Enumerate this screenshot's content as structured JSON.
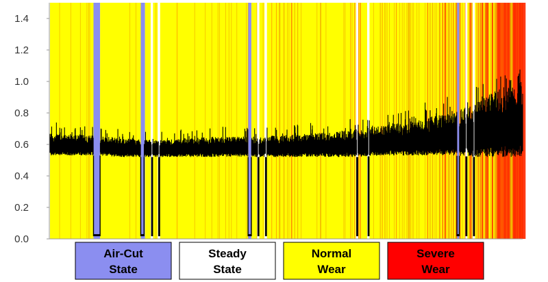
{
  "chart_data": {
    "type": "area",
    "title": "",
    "xlabel": "",
    "ylabel": "",
    "ylim": [
      0.0,
      1.5
    ],
    "yticks": [
      "0.0",
      "0.2",
      "0.4",
      "0.6",
      "0.8",
      "1.0",
      "1.2",
      "1.4"
    ],
    "grid": false,
    "legend_position": "bottom",
    "x_range": [
      0,
      100
    ],
    "legend": [
      {
        "state": "air-cut",
        "lines": [
          "Air-Cut",
          "State"
        ],
        "color": "#8b8ef0",
        "text_color": "#000000"
      },
      {
        "state": "steady",
        "lines": [
          "Steady",
          "State"
        ],
        "color": "#ffffff",
        "text_color": "#000000"
      },
      {
        "state": "normal",
        "lines": [
          "Normal",
          "Wear"
        ],
        "color": "#ffff00",
        "text_color": "#000000"
      },
      {
        "state": "severe",
        "lines": [
          "Severe",
          "Wear"
        ],
        "color": "#ff0000",
        "text_color": "#000000"
      }
    ],
    "background_segments": [
      {
        "state": "normal",
        "start": 0.0,
        "end": 9.2
      },
      {
        "state": "air-cut",
        "start": 9.2,
        "end": 10.6
      },
      {
        "state": "normal",
        "start": 10.6,
        "end": 19.2
      },
      {
        "state": "air-cut",
        "start": 19.2,
        "end": 20.1
      },
      {
        "state": "normal",
        "start": 20.1,
        "end": 21.3
      },
      {
        "state": "steady",
        "start": 21.3,
        "end": 21.8
      },
      {
        "state": "normal",
        "start": 21.8,
        "end": 22.8
      },
      {
        "state": "steady",
        "start": 22.8,
        "end": 23.3
      },
      {
        "state": "normal",
        "start": 23.3,
        "end": 41.9
      },
      {
        "state": "air-cut",
        "start": 41.9,
        "end": 42.6
      },
      {
        "state": "normal",
        "start": 42.6,
        "end": 43.8
      },
      {
        "state": "steady",
        "start": 43.8,
        "end": 44.3
      },
      {
        "state": "normal",
        "start": 44.3,
        "end": 45.4
      },
      {
        "state": "steady",
        "start": 45.4,
        "end": 45.9
      },
      {
        "state": "normal",
        "start": 45.9,
        "end": 64.7
      },
      {
        "state": "steady",
        "start": 64.7,
        "end": 65.2
      },
      {
        "state": "normal",
        "start": 65.2,
        "end": 67.1
      },
      {
        "state": "steady",
        "start": 67.1,
        "end": 67.6
      },
      {
        "state": "normal",
        "start": 67.6,
        "end": 86.1
      },
      {
        "state": "air-cut",
        "start": 86.1,
        "end": 86.6
      },
      {
        "state": "normal",
        "start": 86.6,
        "end": 87.8
      },
      {
        "state": "steady",
        "start": 87.8,
        "end": 88.3
      },
      {
        "state": "normal",
        "start": 88.3,
        "end": 89.4
      },
      {
        "state": "steady",
        "start": 89.4,
        "end": 89.9
      },
      {
        "state": "normal",
        "start": 89.9,
        "end": 100.0
      }
    ],
    "severity_profile": {
      "x": [
        0,
        20,
        40,
        50,
        60,
        70,
        80,
        90,
        95,
        100
      ],
      "density": [
        0.06,
        0.07,
        0.08,
        0.12,
        0.18,
        0.28,
        0.36,
        0.5,
        0.75,
        0.95
      ]
    },
    "signal": {
      "name": "",
      "x": [
        0,
        5,
        10,
        15,
        20,
        25,
        30,
        35,
        40,
        45,
        50,
        55,
        60,
        65,
        70,
        75,
        80,
        85,
        90,
        95,
        100
      ],
      "mean": [
        0.58,
        0.58,
        0.58,
        0.57,
        0.56,
        0.56,
        0.57,
        0.57,
        0.57,
        0.57,
        0.57,
        0.57,
        0.57,
        0.58,
        0.59,
        0.6,
        0.61,
        0.62,
        0.64,
        0.66,
        0.68
      ],
      "lower": [
        0.53,
        0.53,
        0.53,
        0.52,
        0.52,
        0.52,
        0.52,
        0.52,
        0.52,
        0.52,
        0.52,
        0.52,
        0.52,
        0.52,
        0.53,
        0.53,
        0.53,
        0.53,
        0.52,
        0.52,
        0.52
      ],
      "upper": [
        0.67,
        0.66,
        0.66,
        0.64,
        0.63,
        0.63,
        0.64,
        0.65,
        0.65,
        0.65,
        0.66,
        0.67,
        0.68,
        0.7,
        0.72,
        0.74,
        0.77,
        0.8,
        0.86,
        0.96,
        1.0
      ],
      "spike_peak": [
        0.75,
        0.73,
        0.72,
        0.7,
        0.68,
        0.69,
        0.7,
        0.72,
        0.72,
        0.72,
        0.73,
        0.74,
        0.76,
        0.78,
        0.8,
        0.84,
        0.88,
        0.92,
        0.98,
        1.05,
        1.08
      ],
      "drops": [
        {
          "start": 9.2,
          "end": 10.6,
          "floor": 0.02
        },
        {
          "start": 19.2,
          "end": 19.9,
          "floor": 0.02
        },
        {
          "start": 21.5,
          "end": 21.7,
          "floor": 0.02
        },
        {
          "start": 23.0,
          "end": 23.2,
          "floor": 0.02
        },
        {
          "start": 41.9,
          "end": 42.6,
          "floor": 0.02
        },
        {
          "start": 44.0,
          "end": 44.2,
          "floor": 0.02
        },
        {
          "start": 45.6,
          "end": 45.8,
          "floor": 0.02
        },
        {
          "start": 64.9,
          "end": 65.1,
          "floor": 0.02
        },
        {
          "start": 67.3,
          "end": 67.5,
          "floor": 0.02
        },
        {
          "start": 86.1,
          "end": 86.6,
          "floor": 0.02
        },
        {
          "start": 88.0,
          "end": 88.2,
          "floor": 0.02
        },
        {
          "start": 89.6,
          "end": 89.8,
          "floor": 0.02
        }
      ]
    }
  }
}
